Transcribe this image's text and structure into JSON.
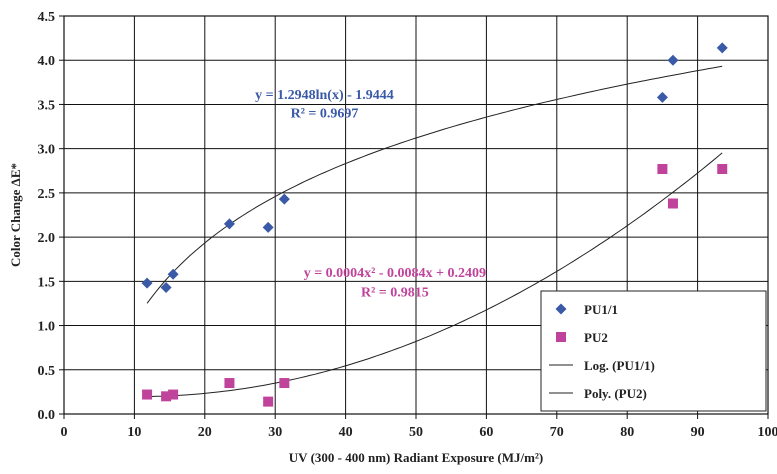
{
  "chart_data": {
    "type": "scatter",
    "xlabel": "UV (300 - 400 nm) Radiant Exposure (MJ/m²)",
    "ylabel": "Color Change ΔE*",
    "xlim": [
      0,
      100
    ],
    "ylim": [
      0,
      4.5
    ],
    "x_ticks": [
      0,
      10,
      20,
      30,
      40,
      50,
      60,
      70,
      80,
      90,
      100
    ],
    "y_ticks": [
      0.0,
      0.5,
      1.0,
      1.5,
      2.0,
      2.5,
      3.0,
      3.5,
      4.0,
      4.5
    ],
    "x_tick_labels": [
      "0",
      "10",
      "20",
      "30",
      "40",
      "50",
      "60",
      "70",
      "80",
      "90",
      "100"
    ],
    "y_tick_labels": [
      "0.0",
      "0.5",
      "1.0",
      "1.5",
      "2.0",
      "2.5",
      "3.0",
      "3.5",
      "4.0",
      "4.5"
    ],
    "grid": true,
    "legend_position": "bottom-right",
    "series": [
      {
        "name": "PU1/1",
        "marker": "diamond",
        "color": "#3a5aa8",
        "points": [
          [
            11.8,
            1.48
          ],
          [
            14.5,
            1.43
          ],
          [
            15.5,
            1.58
          ],
          [
            23.5,
            2.15
          ],
          [
            29.0,
            2.11
          ],
          [
            31.3,
            2.43
          ],
          [
            85.0,
            3.58
          ],
          [
            86.5,
            4.0
          ],
          [
            93.5,
            4.14
          ]
        ]
      },
      {
        "name": "PU2",
        "marker": "square",
        "color": "#c0439b",
        "points": [
          [
            11.8,
            0.22
          ],
          [
            14.5,
            0.2
          ],
          [
            15.5,
            0.22
          ],
          [
            23.5,
            0.35
          ],
          [
            29.0,
            0.14
          ],
          [
            31.3,
            0.35
          ],
          [
            85.0,
            2.77
          ],
          [
            86.5,
            2.38
          ],
          [
            93.5,
            2.77
          ]
        ]
      }
    ],
    "trendlines": [
      {
        "name": "Log. (PU1/1)",
        "kind": "log",
        "a": 1.2948,
        "b": -1.9444,
        "x_range": [
          11.8,
          93.5
        ],
        "color": "#222222"
      },
      {
        "name": "Poly. (PU2)",
        "kind": "poly2",
        "coef": [
          0.0004,
          -0.0084,
          0.2409
        ],
        "x_range": [
          11.8,
          93.5
        ],
        "color": "#222222"
      }
    ],
    "annotations": [
      {
        "text": "y = 1.2948ln(x) - 1.9444",
        "x": 37,
        "y": 3.56,
        "color": "#3a5aa8"
      },
      {
        "text": "R² = 0.9697",
        "x": 37,
        "y": 3.35,
        "color": "#3a5aa8"
      },
      {
        "text": "y = 0.0004x² - 0.0084x + 0.2409",
        "x": 47,
        "y": 1.55,
        "color": "#c0439b"
      },
      {
        "text": "R² = 0.9815",
        "x": 47,
        "y": 1.33,
        "color": "#c0439b"
      }
    ],
    "legend": [
      {
        "label": "PU1/1",
        "symbol": "diamond",
        "color": "#3a5aa8"
      },
      {
        "label": "PU2",
        "symbol": "square",
        "color": "#c0439b"
      },
      {
        "label": "Log. (PU1/1)",
        "symbol": "line",
        "color": "#222222"
      },
      {
        "label": "Poly. (PU2)",
        "symbol": "line",
        "color": "#222222"
      }
    ]
  }
}
